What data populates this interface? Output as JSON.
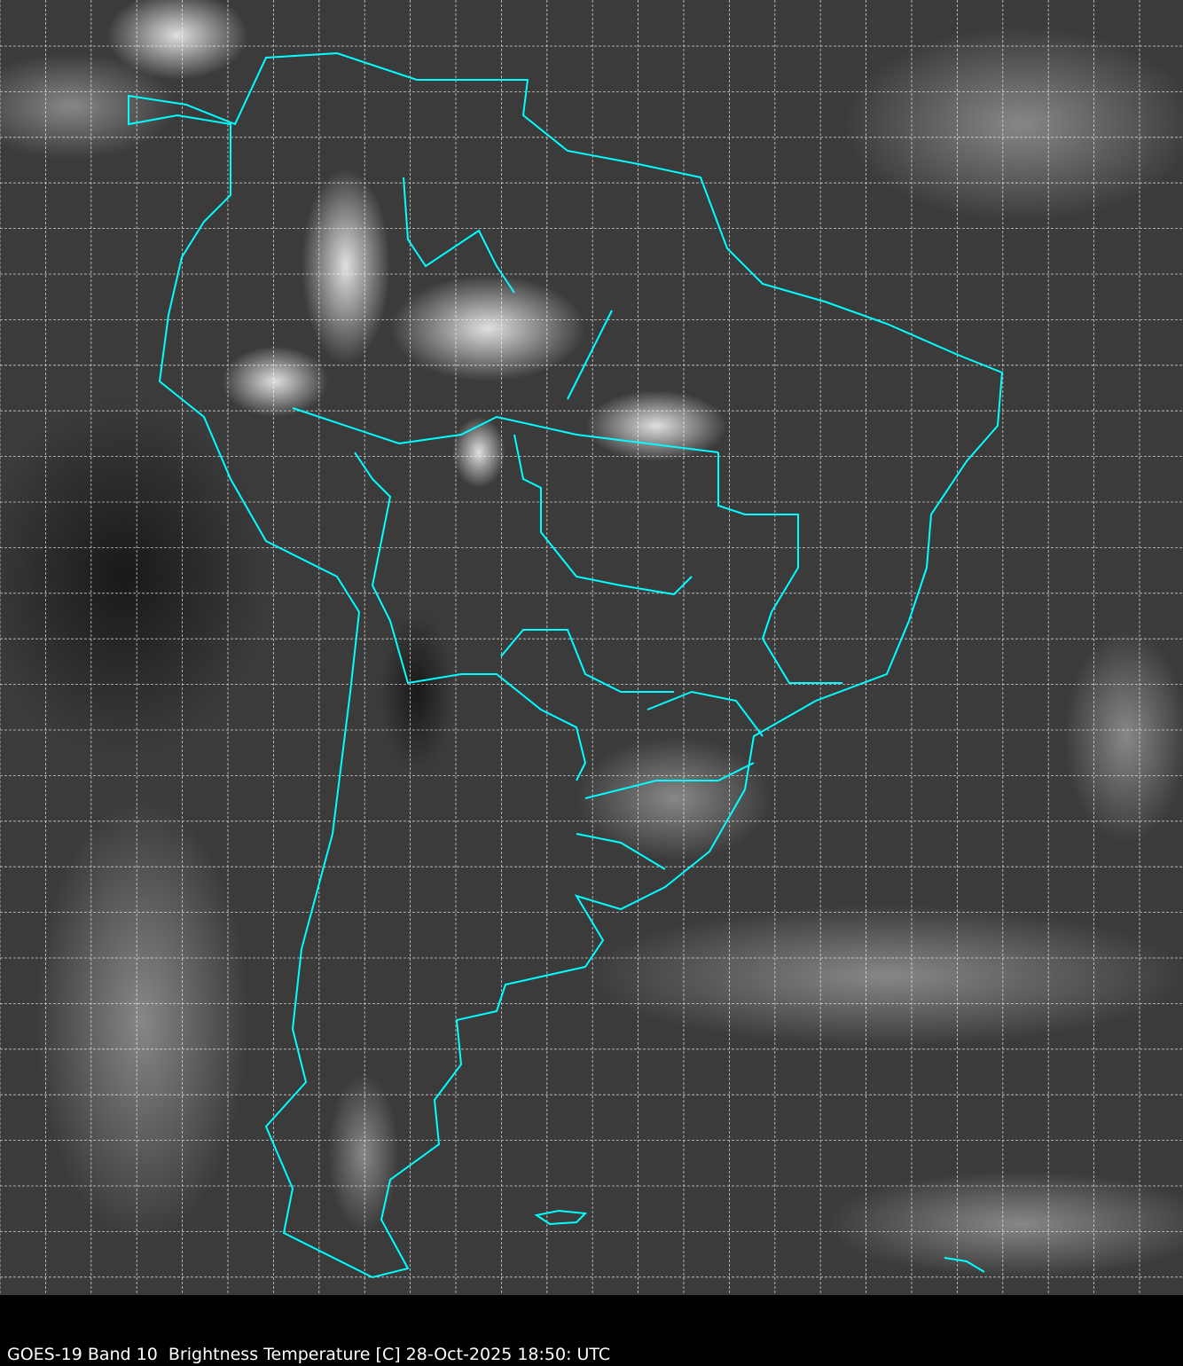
{
  "caption": "GOES-19 Band 10  Brightness Temperature [C] 28-Oct-2025 18:50: UTC",
  "colors": {
    "borders": "#00ffff",
    "grid": "#ffffff",
    "background_cloud_free": "#3a3a3a",
    "caption_bar": "#000000",
    "caption_text": "#ffffff"
  },
  "overlay": {
    "grid": true,
    "political_borders": true
  }
}
